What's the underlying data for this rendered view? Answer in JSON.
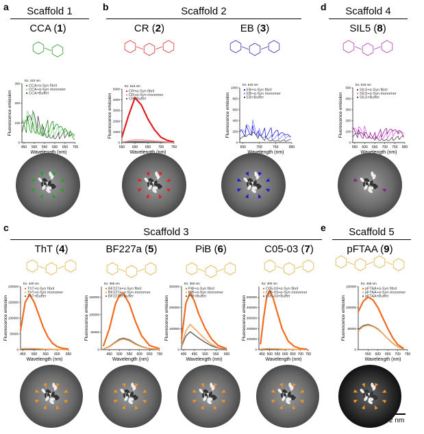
{
  "panels": {
    "a": "a",
    "b": "b",
    "c": "c",
    "d": "d",
    "e": "e"
  },
  "scaffolds": {
    "s1": "Scaffold 1",
    "s2": "Scaffold 2",
    "s3": "Scaffold 3",
    "s4": "Scaffold 4",
    "s5": "Scaffold 5"
  },
  "compounds": [
    {
      "name": "CCA",
      "num": "1",
      "color": "#2a9d2a"
    },
    {
      "name": "CR",
      "num": "2",
      "color": "#d83030"
    },
    {
      "name": "EB",
      "num": "3",
      "color": "#3030b0"
    },
    {
      "name": "SIL5",
      "num": "8",
      "color": "#b040b0"
    },
    {
      "name": "ThT",
      "num": "4",
      "color": "#e0b040"
    },
    {
      "name": "BF227a",
      "num": "5",
      "color": "#e0b040"
    },
    {
      "name": "PiB",
      "num": "6",
      "color": "#e0b040"
    },
    {
      "name": "C05-03",
      "num": "7",
      "color": "#e0b040"
    },
    {
      "name": "pFTAA",
      "num": "9",
      "color": "#e0b040"
    }
  ],
  "scale_bar": "2 nm",
  "chart_data": [
    {
      "type": "line",
      "id": "CCA",
      "excitation": "Ex: 410 nm",
      "xlabel": "Wavelength (nm)",
      "ylabel": "Fluorescence emission",
      "xlim": [
        440,
        700
      ],
      "ylim": [
        0,
        300
      ],
      "xticks": [
        450,
        500,
        550,
        600,
        650,
        700
      ],
      "yticks": [
        0,
        100,
        200,
        300
      ],
      "x": [
        440,
        466,
        492,
        518,
        544,
        570,
        596,
        622,
        648,
        674,
        700
      ],
      "series": [
        {
          "name": "CCA+α-Syn fibril",
          "color": "#1f8a1f",
          "values": [
            70,
            110,
            130,
            110,
            90,
            80,
            65,
            55,
            45,
            40,
            30
          ]
        },
        {
          "name": "CCA+α-Syn monomer",
          "color": "#7ad67a",
          "values": [
            60,
            100,
            120,
            100,
            85,
            70,
            60,
            50,
            40,
            35,
            30
          ]
        },
        {
          "name": "CCA+Buffer",
          "color": "#444444",
          "values": [
            50,
            80,
            100,
            90,
            70,
            60,
            50,
            45,
            35,
            30,
            25
          ]
        }
      ],
      "arrow_color": "#2a9d2a"
    },
    {
      "type": "line",
      "id": "CR",
      "excitation": "Ex: 516 nm",
      "xlabel": "Wavelength (nm)",
      "ylabel": "Fluorescence emission",
      "xlim": [
        550,
        750
      ],
      "ylim": [
        0,
        5000
      ],
      "xticks": [
        550,
        600,
        650,
        700,
        750
      ],
      "yticks": [
        0,
        1000,
        2000,
        3000,
        4000,
        5000
      ],
      "x": [
        550,
        575,
        600,
        625,
        650,
        675,
        700,
        725,
        750
      ],
      "series": [
        {
          "name": "CR+α-Syn fibril",
          "color": "#e02020",
          "values": [
            500,
            2500,
            4200,
            3500,
            2200,
            1200,
            500,
            200,
            80
          ]
        },
        {
          "name": "CR+α-Syn monomer",
          "color": "#f08a8a",
          "values": [
            50,
            150,
            250,
            250,
            200,
            150,
            100,
            60,
            30
          ]
        },
        {
          "name": "CR+Buffer",
          "color": "#555555",
          "values": [
            20,
            50,
            80,
            80,
            60,
            40,
            30,
            20,
            10
          ]
        }
      ],
      "arrow_color": "#e02020"
    },
    {
      "type": "line",
      "id": "EB",
      "excitation": "Ex: 615 nm",
      "xlabel": "Wavelength (nm)",
      "ylabel": "Fluorescence emission",
      "xlim": [
        640,
        800
      ],
      "ylim": [
        0,
        1000
      ],
      "xticks": [
        650,
        700,
        750,
        800
      ],
      "yticks": [
        0,
        200,
        400,
        600,
        800,
        1000
      ],
      "x": [
        640,
        660,
        680,
        700,
        720,
        740,
        760,
        780,
        800
      ],
      "series": [
        {
          "name": "EB+α-Syn fibril",
          "color": "#1a1acc",
          "values": [
            150,
            250,
            380,
            330,
            250,
            180,
            130,
            100,
            80
          ]
        },
        {
          "name": "EB+α-Syn monomer",
          "color": "#7a7aff",
          "values": [
            120,
            200,
            300,
            260,
            200,
            150,
            110,
            90,
            70
          ]
        },
        {
          "name": "EB+Buffer",
          "color": "#444444",
          "values": [
            60,
            80,
            120,
            100,
            90,
            70,
            60,
            50,
            40
          ]
        }
      ],
      "arrow_color": "#1a1acc"
    },
    {
      "type": "line",
      "id": "SIL5",
      "excitation": "Ex: 516 nm",
      "xlabel": "Wavelength (nm)",
      "ylabel": "Fluorescence emission",
      "xlim": [
        540,
        800
      ],
      "ylim": [
        0,
        500
      ],
      "xticks": [
        550,
        600,
        650,
        700,
        750,
        800
      ],
      "yticks": [
        0,
        100,
        200,
        300,
        400,
        500
      ],
      "x": [
        540,
        569,
        598,
        627,
        656,
        684,
        713,
        742,
        771,
        800
      ],
      "series": [
        {
          "name": "SIL5+α-Syn fibril",
          "color": "#8b1a8b",
          "values": [
            90,
            95,
            100,
            95,
            90,
            85,
            80,
            75,
            70,
            65
          ]
        },
        {
          "name": "SIL5+α-Syn monomer",
          "color": "#e060e0",
          "values": [
            80,
            90,
            110,
            100,
            90,
            80,
            75,
            70,
            65,
            60
          ]
        },
        {
          "name": "SIL5+Buffer",
          "color": "#444444",
          "values": [
            50,
            55,
            60,
            55,
            50,
            50,
            45,
            45,
            40,
            40
          ]
        }
      ],
      "arrow_color": "#8b1a8b"
    },
    {
      "type": "line",
      "id": "ThT",
      "excitation": "Ex: 420 nm",
      "xlabel": "Wavelength (nm)",
      "ylabel": "Fluorescence emission",
      "xlim": [
        440,
        650
      ],
      "ylim": [
        0,
        200000
      ],
      "xticks": [
        450,
        500,
        550,
        600,
        650
      ],
      "yticks": [
        0,
        50000,
        100000,
        150000,
        200000
      ],
      "x": [
        440,
        460,
        480,
        500,
        520,
        540,
        560,
        580,
        600,
        620,
        650
      ],
      "series": [
        {
          "name": "ThT+α-Syn fibril",
          "color": "#f26a1b",
          "values": [
            60000,
            150000,
            175000,
            150000,
            110000,
            70000,
            40000,
            20000,
            10000,
            5000,
            2000
          ]
        },
        {
          "name": "ThT+α-Syn monomer",
          "color": "#f5a04a",
          "values": [
            3000,
            4000,
            4000,
            3500,
            3000,
            2000,
            1500,
            1000,
            800,
            500,
            300
          ]
        },
        {
          "name": "ThT+Buffer",
          "color": "#666666",
          "values": [
            2000,
            3000,
            3000,
            2500,
            2000,
            1500,
            1000,
            800,
            600,
            400,
            200
          ]
        }
      ],
      "arrow_color": "#f0902a"
    },
    {
      "type": "line",
      "id": "BF227a",
      "excitation": "Ex: 365 nm",
      "xlabel": "Wavelength (nm)",
      "ylabel": "Fluorescence emission",
      "xlim": [
        410,
        700
      ],
      "ylim": [
        0,
        180000
      ],
      "xticks": [
        450,
        500,
        550,
        600,
        650,
        700
      ],
      "yticks": [
        0,
        50000,
        100000,
        150000
      ],
      "x": [
        420,
        450,
        480,
        500,
        520,
        550,
        580,
        610,
        650,
        700
      ],
      "series": [
        {
          "name": "BF227a+α-Syn fibril",
          "color": "#f26a1b",
          "values": [
            10000,
            60000,
            130000,
            155000,
            160000,
            130000,
            80000,
            40000,
            12000,
            3000
          ]
        },
        {
          "name": "BF227a+α-Syn monomer",
          "color": "#f5a04a",
          "values": [
            2000,
            8000,
            20000,
            27000,
            30000,
            25000,
            15000,
            8000,
            3000,
            1000
          ]
        },
        {
          "name": "BF227a+Buffer",
          "color": "#666666",
          "values": [
            2000,
            9000,
            22000,
            30000,
            33000,
            28000,
            17000,
            9000,
            3000,
            1000
          ]
        }
      ],
      "arrow_color": "#f0902a"
    },
    {
      "type": "line",
      "id": "PiB",
      "excitation": "Ex: 350 nm",
      "xlabel": "Wavelength (nm)",
      "ylabel": "Fluorescence emission",
      "xlim": [
        390,
        600
      ],
      "ylim": [
        0,
        300000
      ],
      "xticks": [
        400,
        450,
        500,
        550,
        600
      ],
      "yticks": [
        0,
        100000,
        200000,
        300000
      ],
      "x": [
        390,
        410,
        430,
        450,
        470,
        500,
        530,
        560,
        600
      ],
      "series": [
        {
          "name": "PiB+α-Syn fibril",
          "color": "#f26a1b",
          "values": [
            50000,
            220000,
            270000,
            230000,
            170000,
            100000,
            50000,
            20000,
            5000
          ]
        },
        {
          "name": "PiB+α-Syn monomer",
          "color": "#f5a04a",
          "values": [
            20000,
            90000,
            120000,
            100000,
            80000,
            50000,
            25000,
            10000,
            3000
          ]
        },
        {
          "name": "PiB+Buffer",
          "color": "#666666",
          "values": [
            15000,
            65000,
            85000,
            70000,
            55000,
            35000,
            18000,
            8000,
            2000
          ]
        }
      ],
      "arrow_color": "#f0902a"
    },
    {
      "type": "line",
      "id": "C05-03",
      "excitation": "Ex: 400 nm",
      "xlabel": "Wavelength (nm)",
      "ylabel": "Fluorescence emission",
      "xlim": [
        430,
        750
      ],
      "ylim": [
        0,
        600000
      ],
      "xticks": [
        450,
        500,
        550,
        600,
        650,
        700,
        750
      ],
      "yticks": [
        0,
        100000,
        200000,
        300000,
        400000,
        500000
      ],
      "x": [
        440,
        460,
        480,
        500,
        520,
        550,
        580,
        620,
        660,
        700,
        740
      ],
      "series": [
        {
          "name": "C05-03+α-Syn fibril",
          "color": "#f26a1b",
          "values": [
            50000,
            300000,
            500000,
            560000,
            500000,
            350000,
            200000,
            80000,
            30000,
            10000,
            5000
          ]
        },
        {
          "name": "C05-03+α-Syn monomer",
          "color": "#f5a04a",
          "values": [
            5000,
            8000,
            10000,
            10000,
            9000,
            8000,
            6000,
            4000,
            3000,
            2000,
            1000
          ]
        },
        {
          "name": "C05-03+Buffer",
          "color": "#666666",
          "values": [
            4000,
            6000,
            8000,
            8000,
            7000,
            6000,
            5000,
            3000,
            2000,
            1500,
            800
          ]
        }
      ],
      "arrow_color": "#f0902a"
    },
    {
      "type": "line",
      "id": "pFTAA",
      "excitation": "Ex: 455 nm",
      "xlabel": "Wavelength (nm)",
      "ylabel": "Fluorescence emission",
      "xlim": [
        500,
        750
      ],
      "ylim": [
        0,
        150000
      ],
      "xticks": [
        550,
        600,
        650,
        700,
        750
      ],
      "yticks": [
        0,
        50000,
        100000,
        150000
      ],
      "x": [
        500,
        525,
        550,
        575,
        600,
        625,
        650,
        675,
        700,
        730
      ],
      "series": [
        {
          "name": "pFTAA+α-Syn fibril",
          "color": "#f26a1b",
          "values": [
            90000,
            115000,
            125000,
            118000,
            100000,
            75000,
            50000,
            28000,
            12000,
            3000
          ]
        },
        {
          "name": "pFTAA+α-Syn monomer",
          "color": "#f5a04a",
          "values": [
            45000,
            55000,
            58000,
            55000,
            48000,
            38000,
            26000,
            15000,
            7000,
            2000
          ]
        },
        {
          "name": "pFTAA+Buffer",
          "color": "#666666",
          "values": [
            48000,
            57000,
            60000,
            56000,
            49000,
            38000,
            26000,
            15000,
            7000,
            2000
          ]
        }
      ],
      "arrow_color": "#f0902a"
    }
  ]
}
